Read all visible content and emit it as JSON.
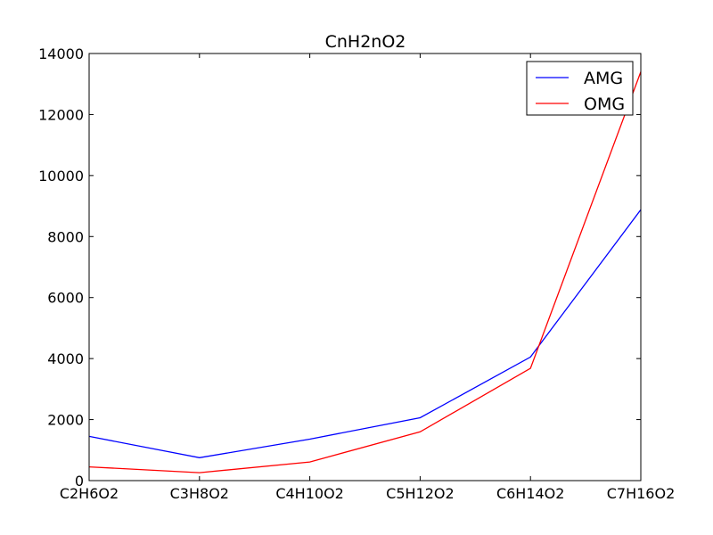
{
  "chart_data": {
    "type": "line",
    "title": "CnH2nO2",
    "xlabel": "",
    "ylabel": "",
    "categories": [
      "C2H6O2",
      "C3H8O2",
      "C4H10O2",
      "C5H12O2",
      "C6H14O2",
      "C7H16O2"
    ],
    "ylim": [
      0,
      14000
    ],
    "yticks": [
      0,
      2000,
      4000,
      6000,
      8000,
      10000,
      12000,
      14000
    ],
    "grid": false,
    "legend_position": "top-right",
    "series": [
      {
        "name": "AMG",
        "color": "#0000ff",
        "values": [
          1450,
          750,
          1360,
          2060,
          4050,
          8880
        ]
      },
      {
        "name": "OMG",
        "color": "#ff0000",
        "values": [
          450,
          260,
          610,
          1600,
          3680,
          13400
        ]
      }
    ]
  }
}
